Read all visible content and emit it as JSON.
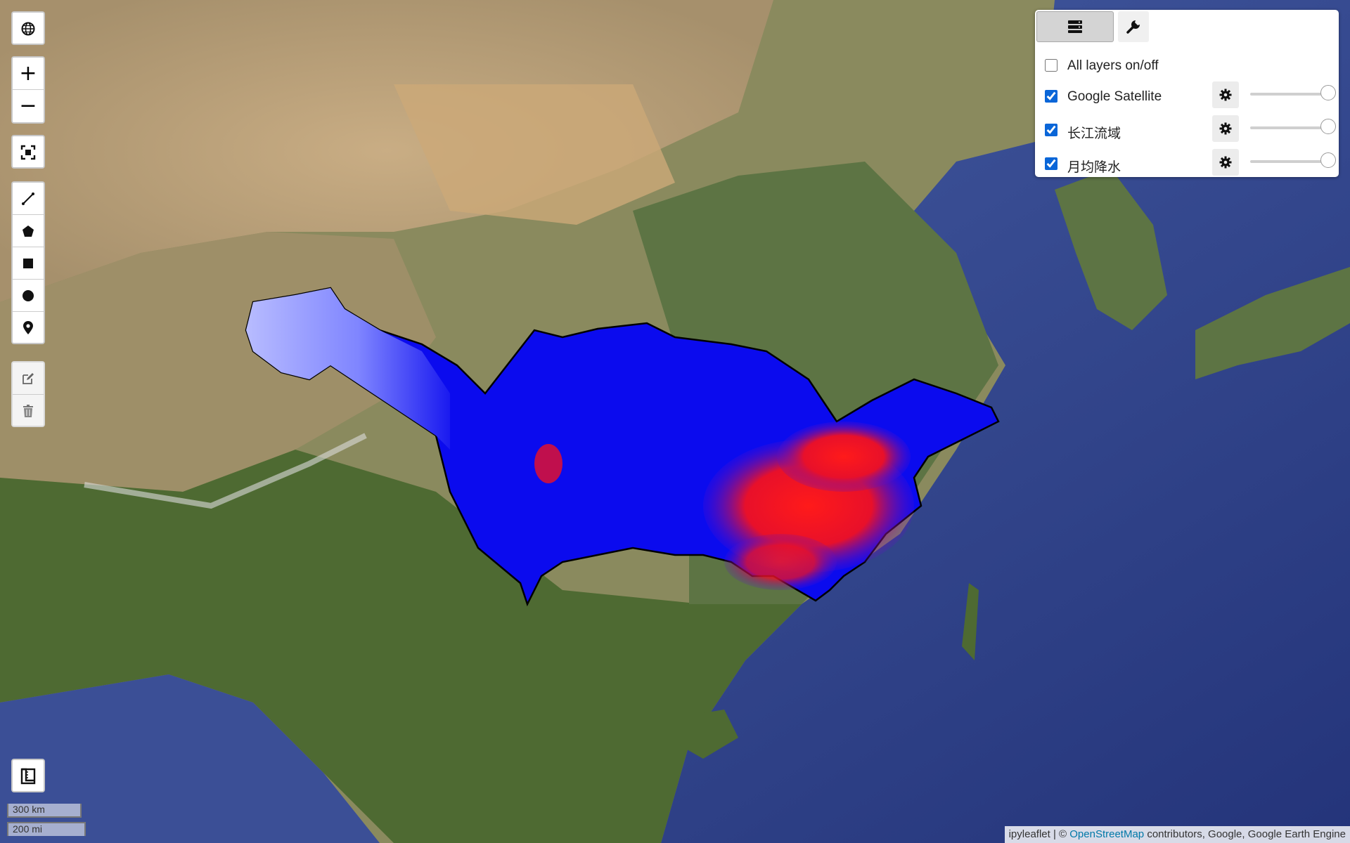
{
  "map": {
    "basemap": "Google Satellite",
    "overlay_colors": {
      "low": "#0000ee",
      "high": "#ff1111",
      "light": "#aab0ff",
      "outline": "#000000"
    }
  },
  "controls": {
    "globe_icon": "globe-icon",
    "zoom_in_label": "+",
    "zoom_out_label": "−",
    "fullscreen_icon": "fullscreen-icon",
    "draw_tools": [
      "polyline-icon",
      "polygon-icon",
      "rectangle-icon",
      "circle-icon",
      "marker-icon"
    ],
    "edit_tools": [
      "edit-icon",
      "trash-icon"
    ],
    "measure_icon": "ruler-icon"
  },
  "layers_panel": {
    "tabs": [
      "layers-icon",
      "wrench-icon"
    ],
    "all_layers": {
      "label": "All layers on/off",
      "checked": false
    },
    "layers": [
      {
        "label": "Google Satellite",
        "checked": true,
        "opacity": 1.0
      },
      {
        "label": "长江流域",
        "checked": true,
        "opacity": 1.0
      },
      {
        "label": "月均降水",
        "checked": true,
        "opacity": 1.0
      }
    ]
  },
  "scale": {
    "metric": "300 km",
    "imperial": "200 mi"
  },
  "attribution": {
    "prefix": "ipyleaflet | © ",
    "link": "OpenStreetMap",
    "suffix": " contributors, Google, Google Earth Engine"
  }
}
